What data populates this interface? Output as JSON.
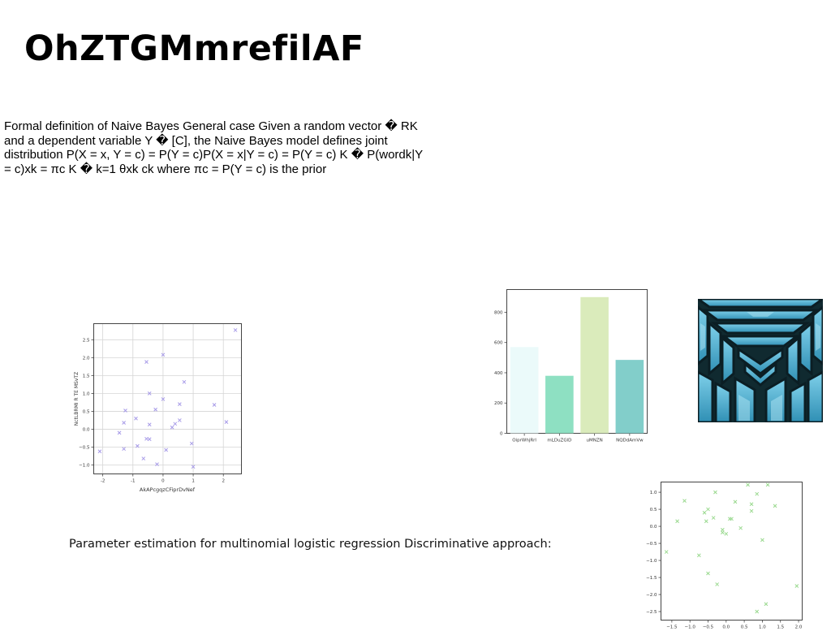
{
  "title": "OhZTGMmrefilAF",
  "paragraph": "Formal definition of Naive Bayes General case Given a random vector � RK and a dependent variable Y � [C], the Naive Bayes model defines joint distribution P(X = x, Y = c) = P(Y = c)P(X = x|Y = c) = P(Y = c) K � P(wordk|Y = c)xk = πc K � k=1 θxk ck where πc = P(Y = c) is the prior",
  "caption": "Parameter estimation for multinomial logistic regression Discriminative approach:",
  "image_alt": "abstract-geometric-architecture-photo",
  "chart_data": [
    {
      "type": "scatter",
      "marker": "x",
      "color": "#a79be8",
      "xlabel": "AkAPcgqzCFiprDvNef",
      "ylabel": "NctLBRMI R TE MSvTZ",
      "xlim": [
        -2.3,
        2.6
      ],
      "ylim": [
        -1.25,
        2.95
      ],
      "xticks": [
        -2,
        -1,
        0,
        1,
        2
      ],
      "yticks": [
        -1.0,
        -0.5,
        0.0,
        0.5,
        1.0,
        1.5,
        2.0,
        2.5
      ],
      "ytick_labels": [
        "−1.0",
        "−0.5",
        "0.0",
        "0.5",
        "1.0",
        "1.5",
        "2.0",
        "2.5"
      ],
      "grid": true,
      "points": [
        {
          "x": -2.1,
          "y": -0.62
        },
        {
          "x": -1.45,
          "y": -0.1
        },
        {
          "x": -1.3,
          "y": 0.18
        },
        {
          "x": -1.3,
          "y": -0.55
        },
        {
          "x": -1.25,
          "y": 0.52
        },
        {
          "x": -0.9,
          "y": 0.3
        },
        {
          "x": -0.85,
          "y": -0.47
        },
        {
          "x": -0.65,
          "y": -0.82
        },
        {
          "x": -0.55,
          "y": 1.88
        },
        {
          "x": -0.55,
          "y": -0.27
        },
        {
          "x": -0.45,
          "y": -0.28
        },
        {
          "x": -0.45,
          "y": 0.13
        },
        {
          "x": -0.45,
          "y": 1.0
        },
        {
          "x": -0.25,
          "y": 0.55
        },
        {
          "x": -0.2,
          "y": -0.98
        },
        {
          "x": 0.0,
          "y": 2.08
        },
        {
          "x": 0.0,
          "y": 0.84
        },
        {
          "x": 0.1,
          "y": -0.58
        },
        {
          "x": 0.3,
          "y": 0.05
        },
        {
          "x": 0.4,
          "y": 0.15
        },
        {
          "x": 0.55,
          "y": 0.25
        },
        {
          "x": 0.55,
          "y": 0.7
        },
        {
          "x": 0.7,
          "y": 1.32
        },
        {
          "x": 0.95,
          "y": -0.4
        },
        {
          "x": 1.0,
          "y": -1.05
        },
        {
          "x": 1.7,
          "y": 0.68
        },
        {
          "x": 2.1,
          "y": 0.2
        },
        {
          "x": 2.4,
          "y": 2.77
        }
      ]
    },
    {
      "type": "bar",
      "categories": [
        "OiprWhjRrl",
        "mLDuZGlD",
        "uMNZN",
        "NQDdAmVw"
      ],
      "values": [
        570,
        380,
        900,
        485
      ],
      "colors": [
        "#ebfafa",
        "#8ee0c2",
        "#daebbb",
        "#82ceca"
      ],
      "ylim": [
        0,
        950
      ],
      "yticks": [
        0,
        200,
        400,
        600,
        800
      ],
      "grid": false
    },
    {
      "type": "scatter",
      "marker": "x",
      "color": "#9ad98f",
      "xlim": [
        -1.8,
        2.1
      ],
      "ylim": [
        -2.75,
        1.3
      ],
      "xticks": [
        -1.5,
        -1.0,
        -0.5,
        0.0,
        0.5,
        1.0,
        1.5,
        2.0
      ],
      "xtick_labels": [
        "−1.5",
        "−1.0",
        "−0.5",
        "0.0",
        "0.5",
        "1.0",
        "1.5",
        "2.0"
      ],
      "yticks": [
        -2.5,
        -2.0,
        -1.5,
        -1.0,
        -0.5,
        0.0,
        0.5,
        1.0
      ],
      "ytick_labels": [
        "−2.5",
        "−2.0",
        "−1.5",
        "−1.0",
        "−0.5",
        "0.0",
        "0.5",
        "1.0"
      ],
      "grid": false,
      "points": [
        {
          "x": -1.65,
          "y": -0.75
        },
        {
          "x": -1.35,
          "y": 0.15
        },
        {
          "x": -1.15,
          "y": 0.75
        },
        {
          "x": -0.75,
          "y": -0.85
        },
        {
          "x": -0.6,
          "y": 0.4
        },
        {
          "x": -0.55,
          "y": 0.15
        },
        {
          "x": -0.5,
          "y": 0.5
        },
        {
          "x": -0.5,
          "y": -1.38
        },
        {
          "x": -0.35,
          "y": 0.25
        },
        {
          "x": -0.3,
          "y": 1.0
        },
        {
          "x": -0.25,
          "y": -1.7
        },
        {
          "x": -0.1,
          "y": -0.1
        },
        {
          "x": -0.1,
          "y": -0.18
        },
        {
          "x": 0.0,
          "y": -0.22
        },
        {
          "x": 0.1,
          "y": 0.22
        },
        {
          "x": 0.15,
          "y": 0.22
        },
        {
          "x": 0.25,
          "y": 0.72
        },
        {
          "x": 0.4,
          "y": -0.05
        },
        {
          "x": 0.6,
          "y": 1.22
        },
        {
          "x": 0.7,
          "y": 0.65
        },
        {
          "x": 0.7,
          "y": 0.45
        },
        {
          "x": 0.85,
          "y": 0.95
        },
        {
          "x": 0.85,
          "y": -2.5
        },
        {
          "x": 1.0,
          "y": -0.4
        },
        {
          "x": 1.1,
          "y": -2.28
        },
        {
          "x": 1.15,
          "y": 1.22
        },
        {
          "x": 1.35,
          "y": 0.6
        },
        {
          "x": 1.95,
          "y": -1.75
        }
      ]
    }
  ]
}
